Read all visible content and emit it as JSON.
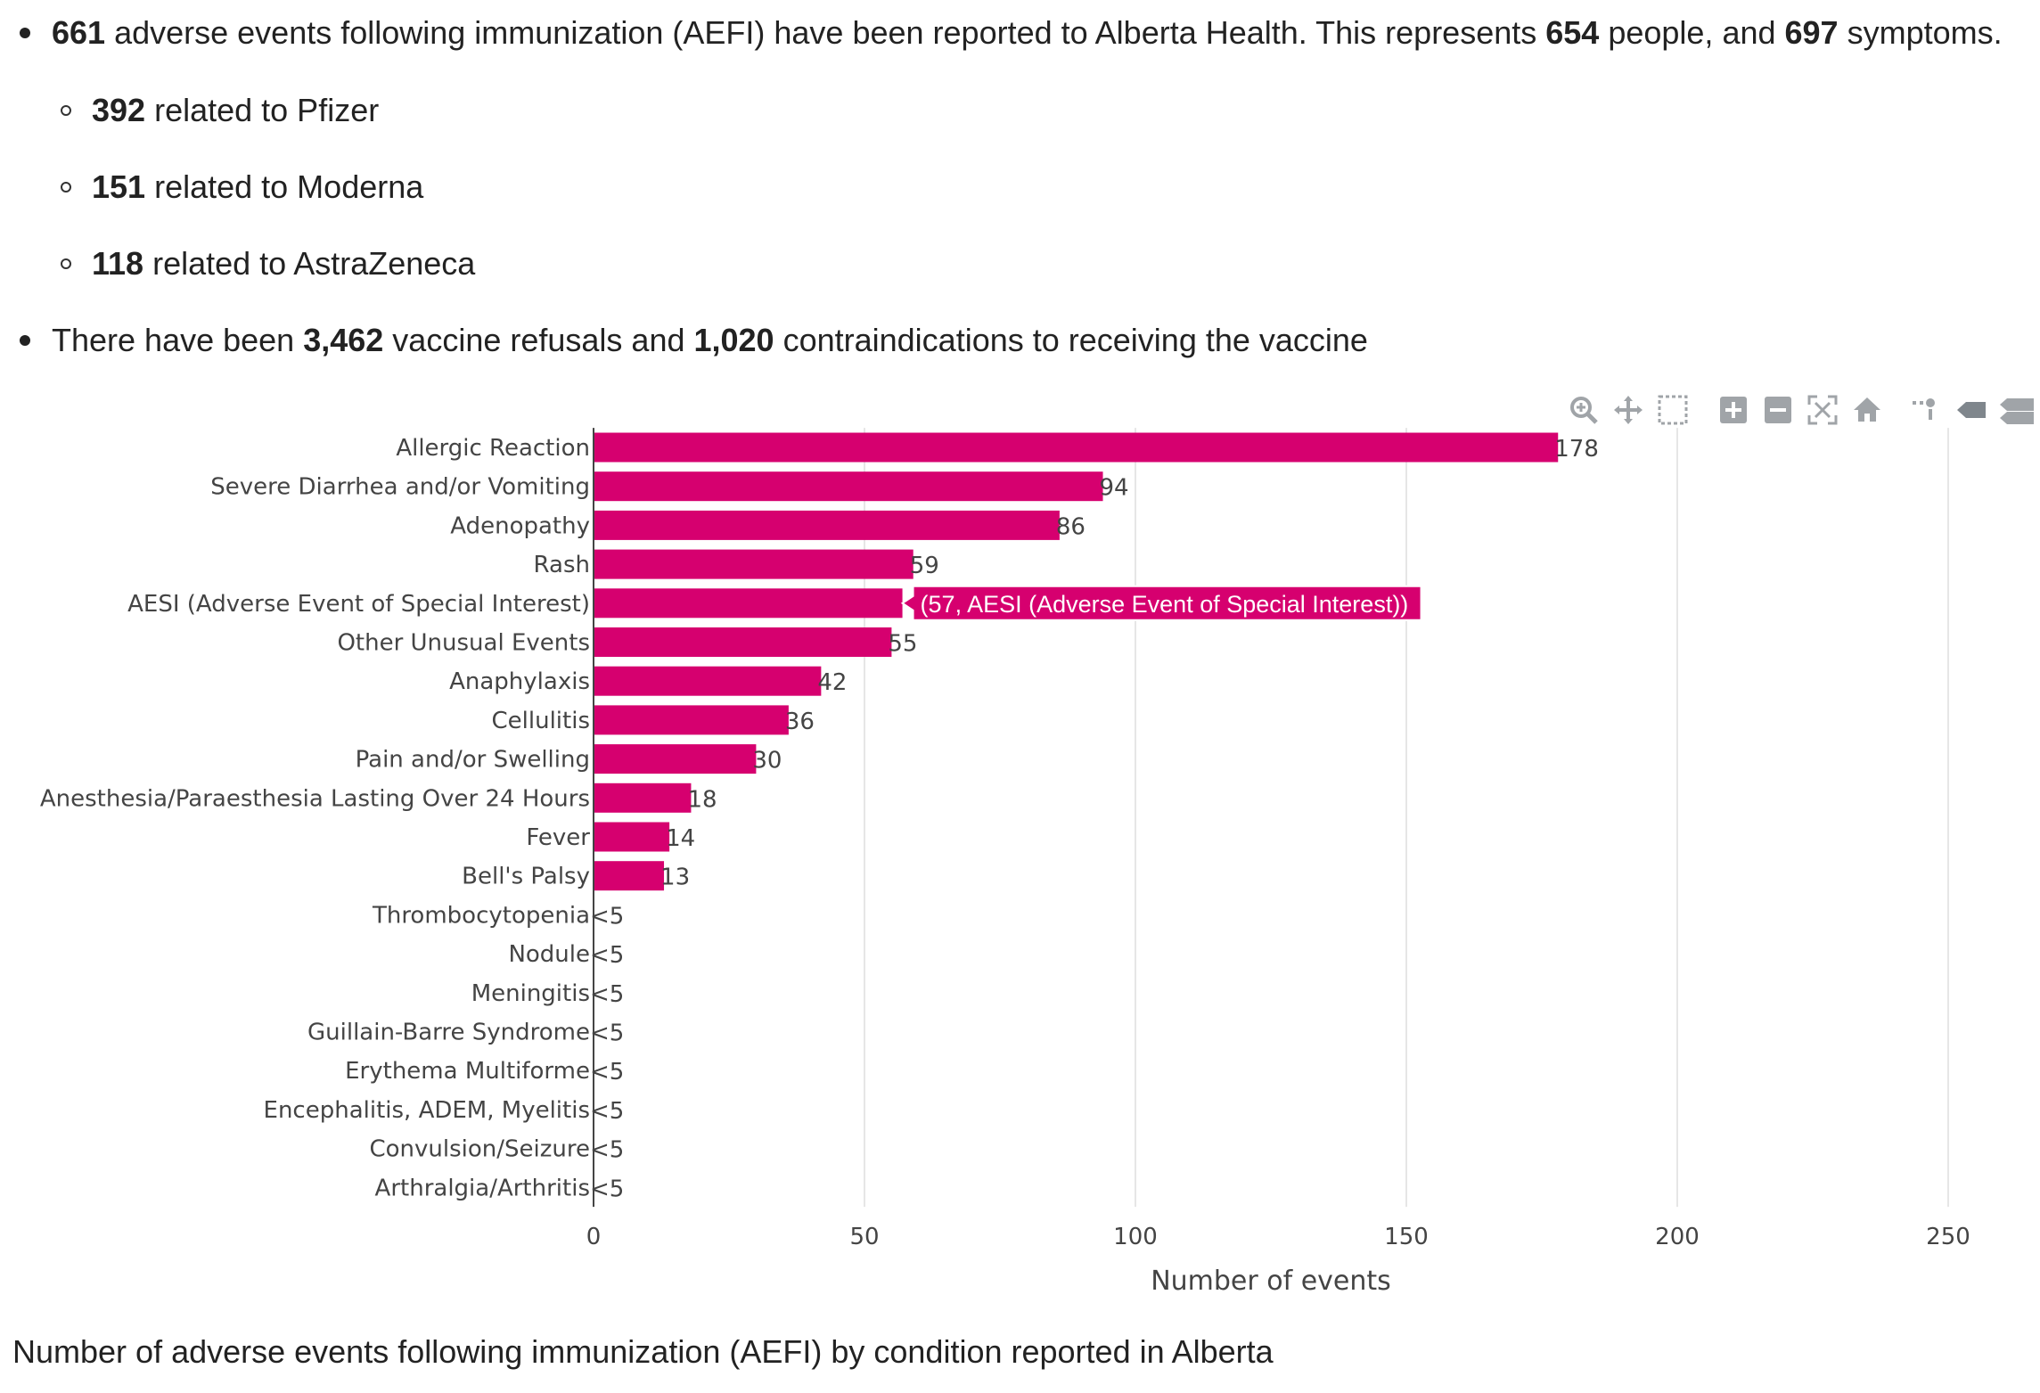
{
  "summary": {
    "line1": {
      "n1": "661",
      "t1": " adverse events following immunization (AEFI) have been reported to Alberta Health. This represents ",
      "n2": "654",
      "t2": " people, and ",
      "n3": "697",
      "t3": " symptoms."
    },
    "sub": [
      {
        "num": "392",
        "text": " related to Pfizer"
      },
      {
        "num": "151",
        "text": " related to Moderna"
      },
      {
        "num": "118",
        "text": " related to AstraZeneca"
      }
    ],
    "line2": {
      "t1": "There have been ",
      "n1": "3,462",
      "t2": " vaccine refusals and ",
      "n2": "1,020",
      "t3": " contraindications to receiving the vaccine"
    }
  },
  "toolbar": [
    "zoom-icon",
    "pan-icon",
    "box-select-icon",
    "zoom-in-icon",
    "zoom-out-icon",
    "autoscale-icon",
    "reset-axes-icon",
    "spike-lines-icon",
    "hover-closest-icon",
    "hover-compare-icon"
  ],
  "chart_data": {
    "type": "bar",
    "orientation": "horizontal",
    "xlabel": "Number of events",
    "xlim": [
      0,
      250
    ],
    "xticks": [
      0,
      50,
      100,
      150,
      200,
      250
    ],
    "color": "#d6006f",
    "grid": true,
    "categories": [
      "Allergic Reaction",
      "Severe Diarrhea and/or Vomiting",
      "Adenopathy",
      "Rash",
      "AESI (Adverse Event of Special Interest)",
      "Other Unusual Events",
      "Anaphylaxis",
      "Cellulitis",
      "Pain and/or Swelling",
      "Anesthesia/Paraesthesia Lasting Over 24 Hours",
      "Fever",
      "Bell's Palsy",
      "Thrombocytopenia",
      "Nodule",
      "Meningitis",
      "Guillain-Barre Syndrome",
      "Erythema Multiforme",
      "Encephalitis, ADEM, Myelitis",
      "Convulsion/Seizure",
      "Arthralgia/Arthritis"
    ],
    "values": [
      178,
      94,
      86,
      59,
      57,
      55,
      42,
      36,
      30,
      18,
      14,
      13,
      0,
      0,
      0,
      0,
      0,
      0,
      0,
      0
    ],
    "labels": [
      "178",
      "94",
      "86",
      "59",
      "",
      "55",
      "42",
      "36",
      "30",
      "18",
      "14",
      "13",
      "<5",
      "<5",
      "<5",
      "<5",
      "<5",
      "<5",
      "<5",
      "<5"
    ],
    "tooltip": {
      "category": "AESI (Adverse Event of Special Interest)",
      "text": "(57, AESI (Adverse Event of Special Interest))"
    }
  },
  "caption": "Number of adverse events following immunization (AEFI) by condition reported in Alberta"
}
